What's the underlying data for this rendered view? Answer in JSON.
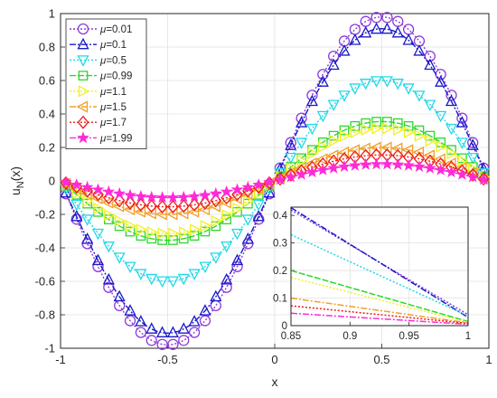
{
  "chart_data": [
    {
      "type": "line",
      "title": "",
      "xlabel": "x",
      "ylabel": "u_N(x)",
      "ylabel_base": "u",
      "ylabel_sub": "N",
      "ylabel_tail": "(x)",
      "xlim": [
        -1,
        1
      ],
      "ylim": [
        -1,
        1
      ],
      "xticks": [
        "-1",
        "-0.5",
        "0",
        "0.5",
        "1"
      ],
      "yticks": [
        "-1",
        "-0.8",
        "-0.6",
        "-0.4",
        "-0.2",
        "0",
        "0.2",
        "0.4",
        "0.6",
        "0.8",
        "1"
      ],
      "grid": true,
      "legend_position": "top-left",
      "series_function": "y = A * sin(pi * x)",
      "series": [
        {
          "name": "μ=0.01",
          "label_prefix": "μ",
          "label_value": "=0.01",
          "amplitude": 0.98,
          "color": "#8c3cd8",
          "marker": "circle",
          "dash": "2,2"
        },
        {
          "name": "μ=0.1",
          "label_prefix": "μ",
          "label_value": "=0.1",
          "amplitude": 0.91,
          "color": "#1a1ac8",
          "marker": "triangle-up",
          "dash": "7,2,2,2"
        },
        {
          "name": "μ=0.5",
          "label_prefix": "μ",
          "label_value": "=0.5",
          "amplitude": 0.6,
          "color": "#22d8e8",
          "marker": "triangle-down",
          "dash": "2,2"
        },
        {
          "name": "μ=0.99",
          "label_prefix": "μ",
          "label_value": "=0.99",
          "amplitude": 0.355,
          "color": "#2cd82c",
          "marker": "square",
          "dash": "7,2"
        },
        {
          "name": "μ=1.1",
          "label_prefix": "μ",
          "label_value": "=1.1",
          "amplitude": 0.315,
          "color": "#f0f020",
          "marker": "triangle-right",
          "dash": "2,2"
        },
        {
          "name": "μ=1.5",
          "label_prefix": "μ",
          "label_value": "=1.5",
          "amplitude": 0.2,
          "color": "#f0a028",
          "marker": "triangle-left",
          "dash": "7,2,2,2"
        },
        {
          "name": "μ=1.7",
          "label_prefix": "μ",
          "label_value": "=1.7",
          "amplitude": 0.155,
          "color": "#ee1a1a",
          "marker": "diamond",
          "dash": "2,2"
        },
        {
          "name": "μ=1.99",
          "label_prefix": "μ",
          "label_value": "=1.99",
          "amplitude": 0.1,
          "color": "#ff2ad8",
          "marker": "star",
          "dash": "7,2,2,2"
        }
      ]
    },
    {
      "type": "line",
      "title": "",
      "xlabel": "",
      "ylabel": "",
      "inset": true,
      "xlim": [
        0.85,
        1
      ],
      "ylim": [
        0,
        0.43
      ],
      "xticks": [
        "0.85",
        "0.9",
        "0.95",
        "1"
      ],
      "yticks": [
        "0",
        "0.1",
        "0.2",
        "0.3",
        "0.4"
      ],
      "grid": true,
      "series": [
        {
          "name": "μ=0.01",
          "x": [
            0.85,
            1
          ],
          "y": [
            0.42,
            0.04
          ]
        },
        {
          "name": "μ=0.1",
          "x": [
            0.85,
            1
          ],
          "y": [
            0.428,
            0.03
          ]
        },
        {
          "name": "μ=0.5",
          "x": [
            0.85,
            1
          ],
          "y": [
            0.33,
            0.035
          ]
        },
        {
          "name": "μ=0.99",
          "x": [
            0.85,
            1
          ],
          "y": [
            0.2,
            0.015
          ]
        },
        {
          "name": "μ=1.1",
          "x": [
            0.85,
            1
          ],
          "y": [
            0.175,
            0.012
          ]
        },
        {
          "name": "μ=1.5",
          "x": [
            0.85,
            1
          ],
          "y": [
            0.1,
            0.01
          ]
        },
        {
          "name": "μ=1.7",
          "x": [
            0.85,
            1
          ],
          "y": [
            0.072,
            0.008
          ]
        },
        {
          "name": "μ=1.99",
          "x": [
            0.85,
            1
          ],
          "y": [
            0.045,
            0.005
          ]
        }
      ]
    }
  ]
}
